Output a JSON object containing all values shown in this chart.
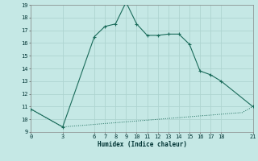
{
  "xlabel": "Humidex (Indice chaleur)",
  "bg_color": "#c5e8e5",
  "grid_color": "#aed4d0",
  "line_color": "#1a6b5a",
  "x_curve": [
    0,
    3,
    6,
    7,
    8,
    9,
    10,
    11,
    12,
    13,
    14,
    15,
    16,
    17,
    18,
    21
  ],
  "y_curve": [
    10.8,
    9.4,
    16.5,
    17.3,
    17.5,
    19.2,
    17.5,
    16.6,
    16.6,
    16.7,
    16.7,
    15.9,
    13.8,
    13.5,
    13.0,
    11.0
  ],
  "x_base": [
    0,
    3,
    4,
    5,
    6,
    7,
    8,
    9,
    10,
    11,
    12,
    13,
    14,
    15,
    16,
    17,
    18,
    19,
    20,
    21
  ],
  "y_base": [
    10.8,
    9.4,
    9.47,
    9.53,
    9.6,
    9.67,
    9.73,
    9.8,
    9.87,
    9.93,
    10.0,
    10.07,
    10.13,
    10.2,
    10.27,
    10.33,
    10.4,
    10.47,
    10.53,
    11.0
  ],
  "xlim": [
    0,
    21
  ],
  "ylim": [
    9,
    19
  ],
  "yticks": [
    9,
    10,
    11,
    12,
    13,
    14,
    15,
    16,
    17,
    18,
    19
  ],
  "xticks": [
    0,
    3,
    6,
    7,
    8,
    9,
    10,
    11,
    12,
    13,
    14,
    15,
    16,
    17,
    18,
    21
  ]
}
